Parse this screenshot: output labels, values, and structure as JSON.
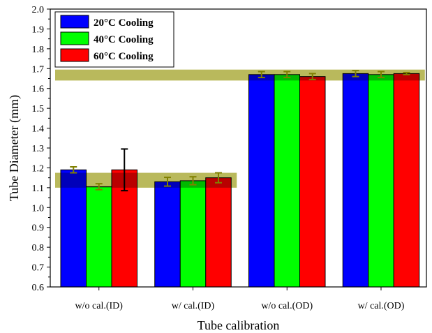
{
  "chart_data": {
    "type": "bar",
    "xlabel": "Tube calibration",
    "ylabel": "Tube Diameter (mm)",
    "ylim": [
      0.6,
      2.0
    ],
    "yticks": [
      "0.6",
      "0.7",
      "0.8",
      "0.9",
      "1.0",
      "1.1",
      "1.2",
      "1.3",
      "1.4",
      "1.5",
      "1.6",
      "1.7",
      "1.8",
      "1.9",
      "2.0"
    ],
    "categories": [
      "w/o cal.(ID)",
      "w/ cal.(ID)",
      "w/o cal.(OD)",
      "w/ cal.(OD)"
    ],
    "series": [
      {
        "name": "20°C Cooling",
        "color": "#0000ff",
        "values": [
          1.19,
          1.13,
          1.67,
          1.675
        ],
        "errors": [
          0.015,
          0.022,
          0.015,
          0.015
        ]
      },
      {
        "name": "40°C Cooling",
        "color": "#00ff00",
        "values": [
          1.105,
          1.135,
          1.67,
          1.67
        ],
        "errors": [
          0.015,
          0.02,
          0.015,
          0.015
        ]
      },
      {
        "name": "60°C Cooling",
        "color": "#ff0000",
        "values": [
          1.19,
          1.15,
          1.66,
          1.675
        ],
        "errors": [
          0.105,
          0.025,
          0.015,
          0.005
        ]
      }
    ],
    "highlight_bands": [
      {
        "category_span": [
          0,
          1
        ],
        "y_range": [
          1.1,
          1.175
        ],
        "color": "#ffff00",
        "opacity": 0.5
      },
      {
        "category_span": [
          0,
          3
        ],
        "y_range": [
          1.64,
          1.695
        ],
        "color": "#ffff00",
        "opacity": 0.5
      }
    ],
    "error_bar_color": "#000000",
    "error_bar_highlight_color": "#808000",
    "grid": false,
    "legend_position": "top-left"
  }
}
